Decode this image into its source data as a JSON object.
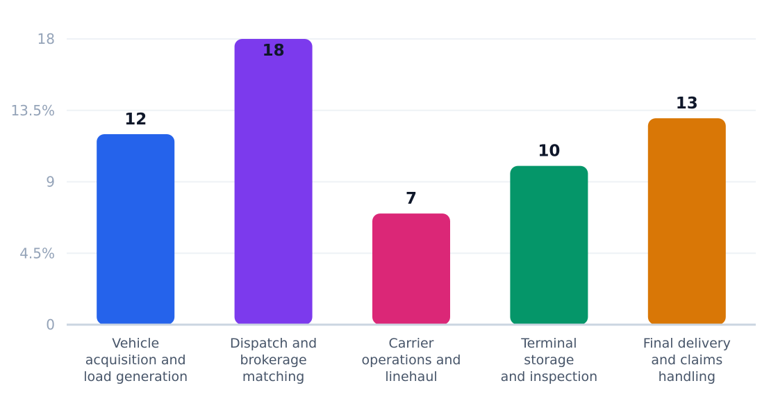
{
  "chart_data": {
    "type": "bar",
    "categories": [
      [
        "Vehicle",
        "acquisition and",
        "load generation"
      ],
      [
        "Dispatch and",
        "brokerage",
        "matching"
      ],
      [
        "Carrier",
        "operations and",
        "linehaul"
      ],
      [
        "Terminal",
        "storage",
        "and inspection"
      ],
      [
        "Final delivery",
        "and claims",
        "handling"
      ]
    ],
    "values": [
      12,
      18,
      7,
      10,
      13
    ],
    "value_labels": [
      "12",
      "18",
      "7",
      "10",
      "13"
    ],
    "colors": [
      "#2563eb",
      "#7c3aed",
      "#db2777",
      "#059669",
      "#d97706"
    ],
    "yticks": [
      0,
      4.5,
      9,
      13.5,
      18
    ],
    "ytick_labels": [
      "0",
      "4.5%",
      "9",
      "13.5%",
      "18"
    ],
    "ylim": [
      0,
      18
    ],
    "grid": true,
    "gridline_color": "#eef2f6",
    "axis_color": "#cbd5e1"
  }
}
